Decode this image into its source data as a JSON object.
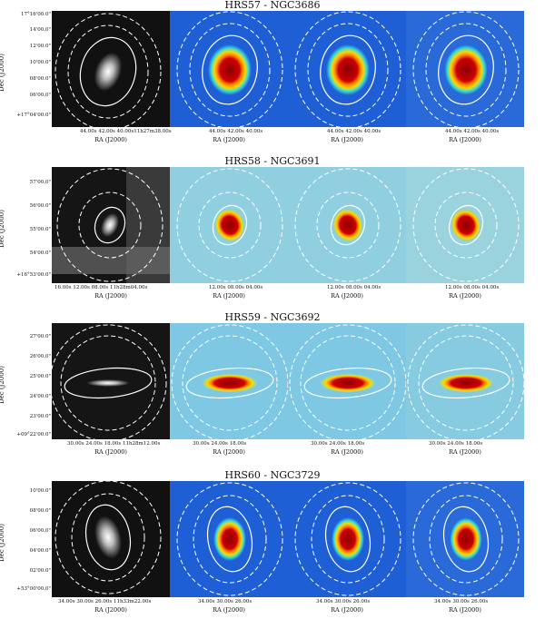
{
  "rows": [
    {
      "title": "HRS57 - NGC3686",
      "ylabel": "Dec (J2000)",
      "yticks": [
        "17°16'00.0\"",
        "14'00.0\"",
        "12'00.0\"",
        "10'00.0\"",
        "08'00.0\"",
        "06'00.0\"",
        "+17°04'00.0\""
      ],
      "panels": [
        {
          "xticks": "44.00s   42.00s  40.00s11h27m38.00s",
          "xlabel": "RA (J2000)"
        },
        {
          "xticks": "44.00s   42.00s   40.00s",
          "xlabel": "RA (J2000)"
        },
        {
          "xticks": "44.00s   42.00s   40.00s",
          "xlabel": "RA (J2000)"
        },
        {
          "xticks": "44.00s   42.00s   40.00s",
          "xlabel": "RA (J2000)"
        }
      ]
    },
    {
      "title": "HRS58 - NGC3691",
      "ylabel": "Dec (J2000)",
      "yticks": [
        "57'00.0\"",
        "56'00.0\"",
        "55'00.0\"",
        "54'00.0\"",
        "+16°53'00.0\""
      ],
      "panels": [
        {
          "xticks": "16.00s   12.00s   08.00s  11h28m04.00s",
          "xlabel": "RA (J2000)"
        },
        {
          "xticks": "12.00s   08.00s   04.00s",
          "xlabel": "RA (J2000)"
        },
        {
          "xticks": "12.00s   08.00s   04.00s",
          "xlabel": "RA (J2000)"
        },
        {
          "xticks": "12.00s   08.00s   04.00s",
          "xlabel": "RA (J2000)"
        }
      ]
    },
    {
      "title": "HRS59 - NGC3692",
      "ylabel": "Dec (J2000)",
      "yticks": [
        "27'00.0\"",
        "26'00.0\"",
        "25'00.0\"",
        "24'00.0\"",
        "23'00.0\"",
        "+09°22'00.0\""
      ],
      "panels": [
        {
          "xticks": "30.00s   24.00s   18.00s  11h28m12.00s",
          "xlabel": "RA (J2000)"
        },
        {
          "xticks": "30.00s   24.00s   18.00s",
          "xlabel": "RA (J2000)"
        },
        {
          "xticks": "30.00s   24.00s   18.00s",
          "xlabel": "RA (J2000)"
        },
        {
          "xticks": "30.00s   24.00s   18.00s",
          "xlabel": "RA (J2000)"
        }
      ]
    },
    {
      "title": "HRS60 - NGC3729",
      "ylabel": "Dec (J2000)",
      "yticks": [
        "10'00.0\"",
        "08'00.0\"",
        "06'00.0\"",
        "04'00.0\"",
        "02'00.0\"",
        "+53°00'00.0\""
      ],
      "panels": [
        {
          "xticks": "34.00s  30.00s  26.00s  11h33m22.00s",
          "xlabel": "RA (J2000)"
        },
        {
          "xticks": "34.00s   30.00s   26.00s",
          "xlabel": "RA (J2000)"
        },
        {
          "xticks": "34.00s   30.00s   26.00s",
          "xlabel": "RA (J2000)"
        },
        {
          "xticks": "34.00s   30.00s   26.00s",
          "xlabel": "RA (J2000)"
        }
      ]
    }
  ]
}
